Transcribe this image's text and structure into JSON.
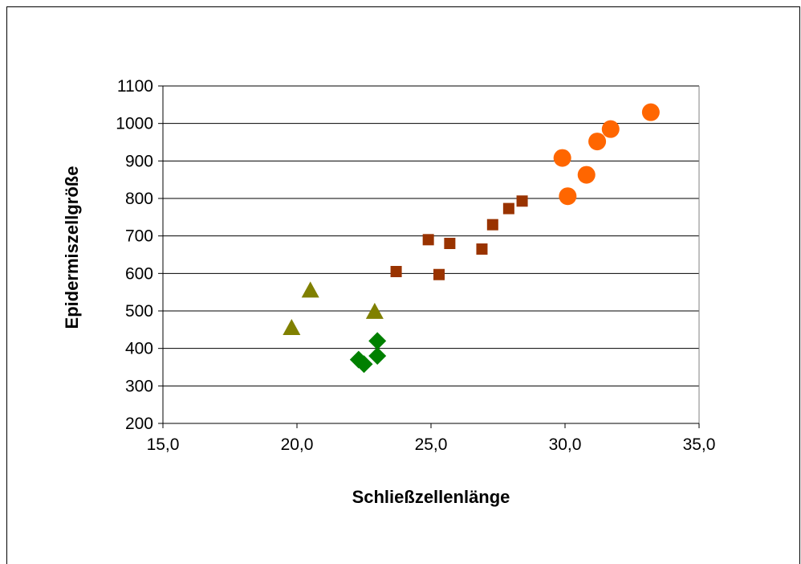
{
  "chart_data": {
    "type": "scatter",
    "xlabel": "Schließzellenlänge",
    "ylabel": "Epidermiszellgröße",
    "xlim": [
      15,
      35
    ],
    "ylim": [
      200,
      1100
    ],
    "xticks": [
      15,
      20,
      25,
      30,
      35
    ],
    "xtick_labels": [
      "15,0",
      "20,0",
      "25,0",
      "30,0",
      "35,0"
    ],
    "yticks": [
      200,
      300,
      400,
      500,
      600,
      700,
      800,
      900,
      1000,
      1100
    ],
    "ytick_labels": [
      "200",
      "300",
      "400",
      "500",
      "600",
      "700",
      "800",
      "900",
      "1000",
      "1100"
    ],
    "grid": "horizontal",
    "legend": "none",
    "series": [
      {
        "marker": "diamond",
        "color": "#008000",
        "points": [
          [
            22.3,
            370
          ],
          [
            22.5,
            358
          ],
          [
            23.0,
            420
          ],
          [
            23.0,
            380
          ]
        ]
      },
      {
        "marker": "triangle",
        "color": "#808000",
        "points": [
          [
            19.8,
            455
          ],
          [
            20.5,
            555
          ],
          [
            22.9,
            498
          ]
        ]
      },
      {
        "marker": "square",
        "color": "#993300",
        "points": [
          [
            23.7,
            605
          ],
          [
            24.9,
            690
          ],
          [
            25.3,
            597
          ],
          [
            25.7,
            680
          ],
          [
            26.9,
            665
          ],
          [
            27.3,
            730
          ],
          [
            27.9,
            773
          ],
          [
            28.4,
            793
          ]
        ]
      },
      {
        "marker": "circle",
        "color": "#FF6600",
        "points": [
          [
            29.9,
            908
          ],
          [
            30.1,
            806
          ],
          [
            30.8,
            863
          ],
          [
            31.2,
            952
          ],
          [
            31.7,
            985
          ],
          [
            33.2,
            1030
          ]
        ]
      }
    ]
  }
}
